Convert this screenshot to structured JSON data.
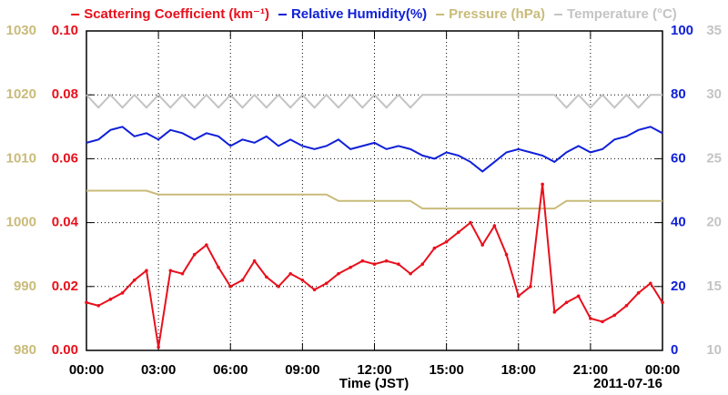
{
  "chart_data": {
    "type": "line",
    "xlabel": "Time (JST)",
    "annotation": "2011-07-16",
    "x": [
      0,
      0.5,
      1,
      1.5,
      2,
      2.5,
      3,
      3.5,
      4,
      4.5,
      5,
      5.5,
      6,
      6.5,
      7,
      7.5,
      8,
      8.5,
      9,
      9.5,
      10,
      10.5,
      11,
      11.5,
      12,
      12.5,
      13,
      13.5,
      14,
      14.5,
      15,
      15.5,
      16,
      16.5,
      17,
      17.5,
      18,
      18.5,
      19,
      19.5,
      20,
      20.5,
      21,
      21.5,
      22,
      22.5,
      23,
      23.5,
      24
    ],
    "xlim": [
      0,
      24
    ],
    "xticks": [
      {
        "value": 0,
        "label": "00:00"
      },
      {
        "value": 3,
        "label": "03:00"
      },
      {
        "value": 6,
        "label": "06:00"
      },
      {
        "value": 9,
        "label": "09:00"
      },
      {
        "value": 12,
        "label": "12:00"
      },
      {
        "value": 15,
        "label": "15:00"
      },
      {
        "value": 18,
        "label": "18:00"
      },
      {
        "value": 21,
        "label": "21:00"
      },
      {
        "value": 24,
        "label": "00:00"
      }
    ],
    "ylim": [
      0,
      0.1
    ],
    "yticks": [
      {
        "value": 0,
        "label": "0.00"
      },
      0.02,
      0.04,
      0.06,
      0.08,
      {
        "value": 0.1,
        "label": "0.10"
      }
    ],
    "y2lim": [
      0,
      100
    ],
    "y2ticks": [
      0,
      20,
      40,
      60,
      80,
      100
    ],
    "y3lim": [
      980,
      1030
    ],
    "y3ticks": [
      980,
      990,
      1000,
      1010,
      1020,
      1030
    ],
    "y4lim": [
      10,
      35
    ],
    "y4ticks": [
      10,
      15,
      20,
      25,
      30,
      35
    ],
    "grid": true,
    "series": [
      {
        "name": "Scattering Coefficient (km⁻¹)",
        "color": "#e8101c",
        "axis": "y",
        "markers": true,
        "values": [
          0.015,
          0.014,
          0.016,
          0.018,
          0.022,
          0.025,
          0.001,
          0.025,
          0.024,
          0.03,
          0.033,
          0.026,
          0.02,
          0.022,
          0.028,
          0.023,
          0.02,
          0.024,
          0.022,
          0.019,
          0.021,
          0.024,
          0.026,
          0.028,
          0.027,
          0.028,
          0.027,
          0.024,
          0.027,
          0.032,
          0.034,
          0.037,
          0.04,
          0.033,
          0.039,
          0.03,
          0.017,
          0.02,
          0.052,
          0.012,
          0.015,
          0.017,
          0.01,
          0.009,
          0.011,
          0.014,
          0.018,
          0.021,
          0.015
        ]
      },
      {
        "name": "Relative Humidity(%)",
        "color": "#1020d8",
        "axis": "y2",
        "markers": false,
        "values": [
          65,
          66,
          69,
          70,
          67,
          68,
          66,
          69,
          68,
          66,
          68,
          67,
          64,
          66,
          65,
          67,
          64,
          66,
          64,
          63,
          64,
          66,
          63,
          64,
          65,
          63,
          64,
          63,
          61,
          60,
          62,
          61,
          59,
          56,
          59,
          62,
          63,
          62,
          61,
          59,
          62,
          64,
          62,
          63,
          66,
          67,
          69,
          70,
          68
        ]
      },
      {
        "name": "Pressure (hPa)",
        "color": "#c9bb7a",
        "axis": "y3",
        "markers": false,
        "values": [
          1005,
          1005,
          1005,
          1005,
          1005,
          1005,
          1004.4,
          1004.4,
          1004.4,
          1004.4,
          1004.4,
          1004.4,
          1004.4,
          1004.4,
          1004.4,
          1004.4,
          1004.4,
          1004.4,
          1004.4,
          1004.4,
          1004.4,
          1003.4,
          1003.4,
          1003.4,
          1003.4,
          1003.4,
          1003.4,
          1003.4,
          1002.2,
          1002.2,
          1002.2,
          1002.2,
          1002.2,
          1002.2,
          1002.2,
          1002.2,
          1002.2,
          1002.2,
          1002.2,
          1002.2,
          1003.4,
          1003.4,
          1003.4,
          1003.4,
          1003.4,
          1003.4,
          1003.4,
          1003.4,
          1003.4
        ]
      },
      {
        "name": "Temperature (°C)",
        "color": "#c4c4c4",
        "axis": "y4",
        "markers": false,
        "values": [
          30,
          29,
          30,
          29,
          30,
          29,
          30,
          29,
          30,
          29,
          30,
          29,
          30,
          29,
          30,
          29,
          30,
          29,
          30,
          29,
          30,
          29,
          30,
          29,
          30,
          29,
          30,
          29,
          30,
          30,
          30,
          30,
          30,
          30,
          30,
          30,
          30,
          30,
          30,
          30,
          29,
          30,
          29,
          30,
          29,
          30,
          29,
          30,
          30
        ]
      }
    ]
  }
}
